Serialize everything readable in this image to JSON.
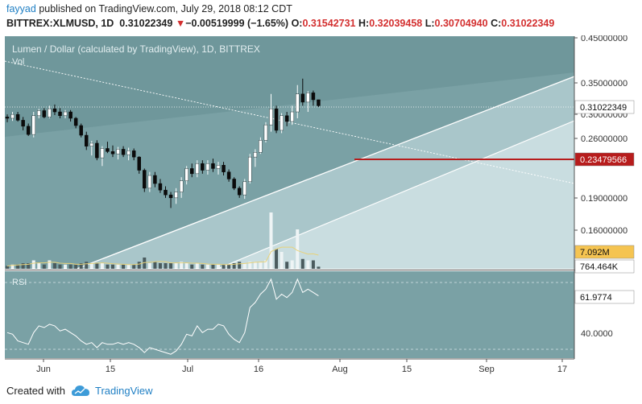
{
  "header": {
    "author": "fayyad",
    "published_text": "published on TradingView.com, July 29, 2018 08:12 CDT",
    "symbol": "BITTREX:XLMUSD, 1D",
    "last": "0.31022349",
    "change_arrow": "▼",
    "change": "−0.00519999 (−1.65%)",
    "open_label": "O:",
    "open": "0.31542731",
    "high_label": "H:",
    "high": "0.32039458",
    "low_label": "L:",
    "low": "0.30704940",
    "close_label": "C:",
    "close": "0.31022349"
  },
  "legend": {
    "title": "Lumen / Dollar (calculated by TradingView), 1D, BITTREX",
    "vol": "Vol",
    "rsi": "RSI"
  },
  "footer": {
    "created_with": "Created with",
    "brand": "TradingView"
  },
  "colors": {
    "pane_bg": "#7aa1a5",
    "channel_light": "#c9dde0",
    "up_candle": "#ffffff",
    "down_candle": "#0b0b0b",
    "hline": "#b71c1c",
    "vol_ma": "#e8d27a",
    "axis_bg": "#ffffff",
    "vol_badge": "#f5c451"
  },
  "chart_data": [
    {
      "type": "candlestick",
      "title": "Lumen / Dollar (calculated by TradingView), 1D, BITTREX",
      "y_scale": "log",
      "x_ticks": [
        "Jun",
        "15",
        "Jul",
        "16",
        "Aug",
        "15",
        "Sep",
        "17"
      ],
      "y_ticks": [
        "0.45000000",
        "0.35000000",
        "0.30000000",
        "0.26000000",
        "0.23479566",
        "0.19000000",
        "0.16000000"
      ],
      "price_labels": {
        "last": "0.31022349",
        "line": "0.23479566"
      },
      "horizontal_line": 0.23479566,
      "candles": [
        [
          0.292,
          0.296,
          0.284,
          0.29
        ],
        [
          0.29,
          0.3,
          0.286,
          0.296
        ],
        [
          0.296,
          0.3,
          0.285,
          0.287
        ],
        [
          0.287,
          0.292,
          0.272,
          0.278
        ],
        [
          0.278,
          0.282,
          0.264,
          0.266
        ],
        [
          0.266,
          0.3,
          0.262,
          0.294
        ],
        [
          0.294,
          0.305,
          0.29,
          0.302
        ],
        [
          0.302,
          0.306,
          0.29,
          0.292
        ],
        [
          0.292,
          0.31,
          0.29,
          0.305
        ],
        [
          0.305,
          0.312,
          0.295,
          0.3
        ],
        [
          0.3,
          0.306,
          0.29,
          0.294
        ],
        [
          0.294,
          0.303,
          0.29,
          0.3
        ],
        [
          0.3,
          0.303,
          0.285,
          0.29
        ],
        [
          0.29,
          0.292,
          0.275,
          0.279
        ],
        [
          0.279,
          0.282,
          0.262,
          0.265
        ],
        [
          0.265,
          0.27,
          0.245,
          0.25
        ],
        [
          0.25,
          0.257,
          0.238,
          0.254
        ],
        [
          0.254,
          0.258,
          0.232,
          0.235
        ],
        [
          0.235,
          0.25,
          0.225,
          0.247
        ],
        [
          0.247,
          0.256,
          0.241,
          0.243
        ],
        [
          0.243,
          0.251,
          0.236,
          0.24
        ],
        [
          0.24,
          0.249,
          0.233,
          0.246
        ],
        [
          0.246,
          0.25,
          0.236,
          0.239
        ],
        [
          0.239,
          0.248,
          0.232,
          0.244
        ],
        [
          0.244,
          0.247,
          0.232,
          0.236
        ],
        [
          0.236,
          0.237,
          0.216,
          0.22
        ],
        [
          0.22,
          0.222,
          0.196,
          0.2
        ],
        [
          0.2,
          0.218,
          0.196,
          0.214
        ],
        [
          0.214,
          0.218,
          0.201,
          0.205
        ],
        [
          0.205,
          0.21,
          0.195,
          0.198
        ],
        [
          0.198,
          0.202,
          0.19,
          0.193
        ],
        [
          0.193,
          0.196,
          0.18,
          0.19
        ],
        [
          0.19,
          0.2,
          0.184,
          0.196
        ],
        [
          0.196,
          0.212,
          0.19,
          0.208
        ],
        [
          0.208,
          0.225,
          0.204,
          0.222
        ],
        [
          0.222,
          0.228,
          0.212,
          0.216
        ],
        [
          0.216,
          0.232,
          0.212,
          0.228
        ],
        [
          0.228,
          0.232,
          0.216,
          0.22
        ],
        [
          0.22,
          0.232,
          0.215,
          0.228
        ],
        [
          0.228,
          0.234,
          0.218,
          0.222
        ],
        [
          0.222,
          0.23,
          0.215,
          0.226
        ],
        [
          0.226,
          0.23,
          0.214,
          0.218
        ],
        [
          0.218,
          0.221,
          0.207,
          0.21
        ],
        [
          0.21,
          0.212,
          0.198,
          0.2
        ],
        [
          0.2,
          0.202,
          0.19,
          0.193
        ],
        [
          0.193,
          0.21,
          0.189,
          0.207
        ],
        [
          0.207,
          0.24,
          0.205,
          0.236
        ],
        [
          0.236,
          0.246,
          0.224,
          0.242
        ],
        [
          0.242,
          0.262,
          0.24,
          0.258
        ],
        [
          0.258,
          0.284,
          0.255,
          0.28
        ],
        [
          0.28,
          0.33,
          0.27,
          0.305
        ],
        [
          0.305,
          0.31,
          0.268,
          0.272
        ],
        [
          0.272,
          0.298,
          0.268,
          0.294
        ],
        [
          0.294,
          0.3,
          0.278,
          0.285
        ],
        [
          0.285,
          0.31,
          0.28,
          0.3
        ],
        [
          0.3,
          0.346,
          0.29,
          0.33
        ],
        [
          0.33,
          0.358,
          0.31,
          0.316
        ],
        [
          0.316,
          0.335,
          0.3,
          0.332
        ],
        [
          0.332,
          0.336,
          0.31,
          0.32
        ],
        [
          0.32,
          0.32,
          0.308,
          0.31
        ]
      ],
      "volume": {
        "ma_label": "7.092M",
        "last_label": "764.464K",
        "values": [
          2,
          3,
          3,
          4,
          4,
          6,
          4,
          3,
          6,
          4,
          3,
          3,
          3,
          3,
          4,
          5,
          4,
          4,
          4,
          3,
          3,
          3,
          3,
          3,
          3,
          5,
          8,
          4,
          5,
          4,
          4,
          4,
          4,
          5,
          4,
          3,
          4,
          3,
          3,
          3,
          3,
          3,
          3,
          4,
          5,
          4,
          5,
          5,
          5,
          6,
          40,
          14,
          12,
          5,
          6,
          28,
          7,
          6,
          6,
          1.5
        ]
      },
      "rsi": {
        "label": "RSI",
        "value_label": "61.9774",
        "level_label": "40.0000",
        "bands": [
          70,
          30
        ],
        "values": [
          40,
          39,
          35,
          34,
          33,
          40,
          44,
          43,
          45,
          44,
          41,
          42,
          40,
          38,
          35,
          33,
          34,
          31,
          34,
          33,
          33,
          34,
          33,
          34,
          33,
          31,
          28,
          31,
          30,
          29,
          28,
          27,
          29,
          33,
          39,
          38,
          44,
          40,
          42,
          42,
          45,
          44,
          39,
          36,
          34,
          40,
          55,
          58,
          63,
          66,
          72,
          60,
          63,
          61,
          64,
          72,
          64,
          66,
          64,
          62
        ]
      }
    }
  ]
}
